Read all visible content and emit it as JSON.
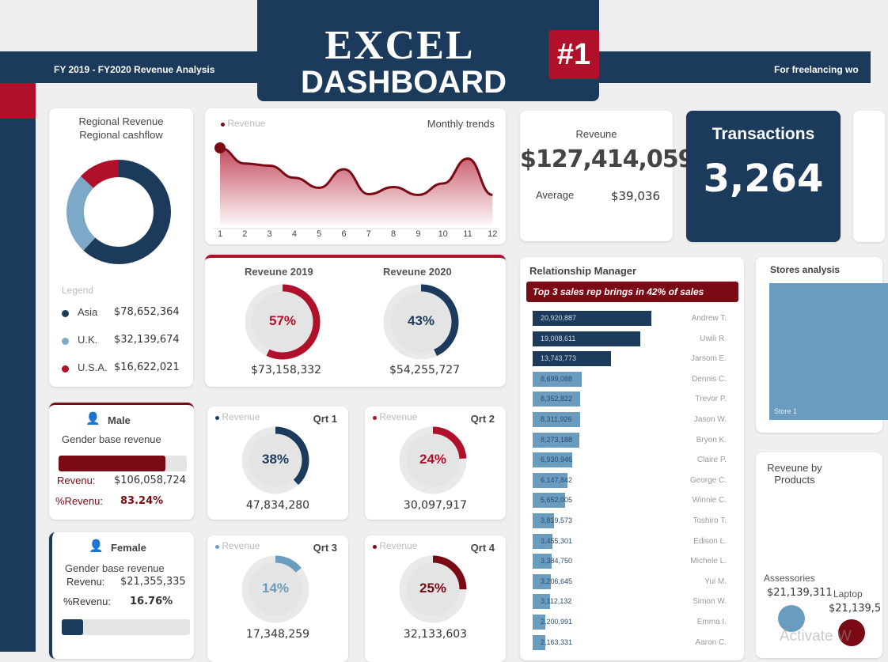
{
  "header": {
    "left_text": "FY 2019 - FY2020 Revenue Analysis",
    "right_text": "For freelancing wo",
    "title_line1": "EXCEL",
    "title_line2": "DASHBOARD",
    "badge": "#1"
  },
  "colors": {
    "navy": "#1b3a5c",
    "red": "#b0102a",
    "dark_red": "#7a0a14",
    "light_blue": "#6a9cc0",
    "grey": "#e0e0e0"
  },
  "regional": {
    "title": "Regional Revenue",
    "subtitle": "Regional cashflow",
    "legend_title": "Legend",
    "items": [
      {
        "label": "Asia",
        "value": "$78,652,364",
        "amount": 78652364,
        "color": "#1b3a5c"
      },
      {
        "label": "U.K.",
        "value": "$32,139,674",
        "amount": 32139674,
        "color": "#7ea8c8"
      },
      {
        "label": "U.S.A.",
        "value": "$16,622,021",
        "amount": 16622021,
        "color": "#b0102a"
      }
    ]
  },
  "monthly": {
    "legend": "Revenue",
    "title": "Monthly trends"
  },
  "chart_data": {
    "type": "area",
    "title": "Monthly trends",
    "series": [
      {
        "name": "Revenue",
        "values": [
          100,
          78,
          75,
          58,
          44,
          70,
          35,
          45,
          34,
          50,
          85,
          34
        ]
      }
    ],
    "categories": [
      "1",
      "2",
      "3",
      "4",
      "5",
      "6",
      "7",
      "8",
      "9",
      "10",
      "11",
      "12"
    ]
  },
  "kpi": {
    "revenue_label": "Reveune",
    "revenue": "$127,414,059",
    "average_label": "Average",
    "average": "$39,036",
    "transactions_label": "Transactions",
    "transactions": "3,264"
  },
  "yearly": [
    {
      "title": "Reveune  2019",
      "pct": "57%",
      "fraction": 0.57,
      "value": "$73,158,332",
      "color": "#b0102a"
    },
    {
      "title": "Reveune  2020",
      "pct": "43%",
      "fraction": 0.43,
      "value": "$54,255,727",
      "color": "#1b3a5c"
    }
  ],
  "gender": [
    {
      "title": "Male",
      "subtitle": "Gender base revenue",
      "rev_label": "Revenu:",
      "rev": "$106,058,724",
      "pct_label": "%Revenu:",
      "pct": "83.24%",
      "fraction": 0.8324,
      "color": "#7a0a14"
    },
    {
      "title": "Female",
      "subtitle": "Gender base revenue",
      "rev_label": "Revenu:",
      "rev": "$21,355,335",
      "pct_label": "%Revenu:",
      "pct": "16.76%",
      "fraction": 0.1676,
      "color": "#1b3a5c"
    }
  ],
  "quarters": [
    {
      "legend": "Revenue",
      "title": "Qrt 1",
      "pct": "38%",
      "fraction": 0.38,
      "value": "47,834,280",
      "color": "#1b3a5c"
    },
    {
      "legend": "Revenue",
      "title": "Qrt 2",
      "pct": "24%",
      "fraction": 0.24,
      "value": "30,097,917",
      "color": "#b0102a"
    },
    {
      "legend": "Revenue",
      "title": "Qrt 3",
      "pct": "14%",
      "fraction": 0.14,
      "value": "17,348,259",
      "color": "#6a9cc0"
    },
    {
      "legend": "Revenue",
      "title": "Qrt 4",
      "pct": "25%",
      "fraction": 0.25,
      "value": "32,133,603",
      "color": "#7a0a14"
    }
  ],
  "managers": {
    "title": "Relationship Manager",
    "banner": "Top  3 sales rep brings in 42% of sales",
    "rows": [
      {
        "name": "Andrew T.",
        "value": "20,920,887",
        "amount": 20920887
      },
      {
        "name": "Uwili R.",
        "value": "19,008,611",
        "amount": 19008611
      },
      {
        "name": "Jarsom E.",
        "value": "13,743,773",
        "amount": 13743773
      },
      {
        "name": "Dennis C.",
        "value": "8,699,088",
        "amount": 8699088
      },
      {
        "name": "Trevor P.",
        "value": "8,352,822",
        "amount": 8352822
      },
      {
        "name": "Jason W.",
        "value": "8,311,926",
        "amount": 8311926
      },
      {
        "name": "Bryon K.",
        "value": "8,273,188",
        "amount": 8273188
      },
      {
        "name": "Claire P.",
        "value": "6,930,946",
        "amount": 6930946
      },
      {
        "name": "George C.",
        "value": "6,147,842",
        "amount": 6147842
      },
      {
        "name": "Winnie C.",
        "value": "5,652,005",
        "amount": 5652005
      },
      {
        "name": "Toshiro T.",
        "value": "3,819,573",
        "amount": 3819573
      },
      {
        "name": "Edison L.",
        "value": "3,455,301",
        "amount": 3455301
      },
      {
        "name": "Michele L.",
        "value": "3,384,750",
        "amount": 3384750
      },
      {
        "name": "Yui M.",
        "value": "3,206,645",
        "amount": 3206645
      },
      {
        "name": "Simon W.",
        "value": "3,112,132",
        "amount": 3112132
      },
      {
        "name": "Emma I.",
        "value": "2,200,991",
        "amount": 2200991
      },
      {
        "name": "Aaron C.",
        "value": "2,163,331",
        "amount": 2163331
      }
    ]
  },
  "stores": {
    "title": "Stores analysis",
    "store_label": "Store 1"
  },
  "products": {
    "title": "Reveune by Products",
    "items": [
      {
        "label": "Assessories",
        "value": "$21,139,311"
      },
      {
        "label": "Laptop",
        "value": "$21,139,5"
      }
    ],
    "watermark": "Activate W"
  }
}
